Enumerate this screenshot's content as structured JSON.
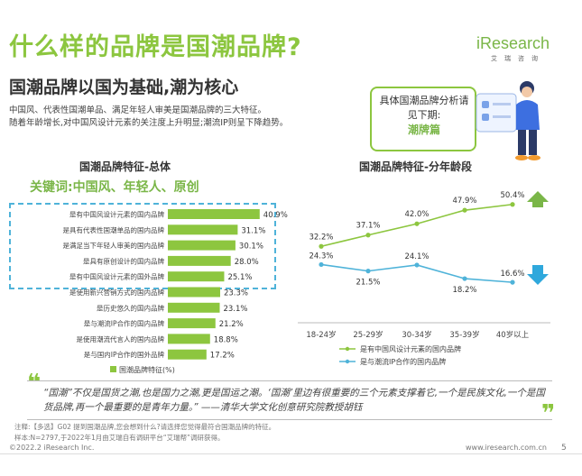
{
  "header": {
    "title": "什么样的品牌是国潮品牌?",
    "subtitle": "国潮品牌以国为基础,潮为核心",
    "desc_line1": "中国风、代表性国潮单品、满足年轻人审美是国潮品牌的三大特征。",
    "desc_line2": "随着年龄增长,对中国风设计元素的关注度上升明显;潮流IP则呈下降趋势。",
    "logo_text": "iResearch",
    "logo_sub": "艾瑞咨询"
  },
  "callout": {
    "text": "具体国潮品牌分析请见下期:",
    "emphasis": "潮牌篇"
  },
  "left_chart_title": "国潮品牌特征-总体",
  "keywords": "关键词:中国风、年轻人、原创",
  "right_chart_title": "国潮品牌特征-分年龄段",
  "quote": "“国潮”不仅是国货之潮,也是国力之潮,更是国运之潮。‘国潮’里边有很重要的三个元素支撑着它,一个是民族文化,一个是国货品牌,再一个最重要的是青年力量。” ——清华大学文化创意研究院教授胡钰",
  "notes": {
    "line1": "注释:【多选】G02 提到国潮品牌,您会想到什么?请选择您觉得最符合国潮品牌的特征。",
    "line2": "样本:N=2797,于2022年1月由艾瑞自有调研平台“艾瑞帮”调研获得。"
  },
  "footer": {
    "copyright": "©2022.2 iResearch Inc.",
    "url": "www.iresearch.com.cn",
    "page": "5"
  },
  "colors": {
    "accent_green": "#8cc63f",
    "bar_green": "#8dc63f",
    "line_blue": "#4fb3d9",
    "arrow_green": "#7ab648",
    "arrow_blue": "#2fa8dc"
  },
  "chart_data": [
    {
      "type": "bar",
      "orientation": "horizontal",
      "title": "国潮品牌特征-总体",
      "categories": [
        "是有中国风设计元素的国内品牌",
        "是具有代表性国潮单品的国内品牌",
        "是满足当下年轻人审美的国内品牌",
        "是具有原创设计的国内品牌",
        "是有中国风设计元素的国外品牌",
        "是使用新兴营销方式的国内品牌",
        "是历史悠久的国内品牌",
        "是与潮流IP合作的国内品牌",
        "是使用潮流代言人的国内品牌",
        "是与国内IP合作的国外品牌"
      ],
      "values": [
        40.9,
        31.1,
        30.1,
        28.0,
        25.1,
        23.3,
        23.1,
        21.2,
        18.8,
        17.2
      ],
      "value_labels": [
        "40.9%",
        "31.1%",
        "30.1%",
        "28.0%",
        "25.1%",
        "23.3%",
        "23.1%",
        "21.2%",
        "18.8%",
        "17.2%"
      ],
      "legend": "国潮品牌特征(%)",
      "xlim": [
        0,
        45
      ]
    },
    {
      "type": "line",
      "title": "国潮品牌特征-分年龄段",
      "categories": [
        "18-24岁",
        "25-29岁",
        "30-34岁",
        "35-39岁",
        "40岁以上"
      ],
      "series": [
        {
          "name": "是有中国风设计元素的国内品牌",
          "values": [
            32.2,
            37.1,
            42.0,
            47.9,
            50.4
          ],
          "labels": [
            "32.2%",
            "37.1%",
            "42.0%",
            "47.9%",
            "50.4%"
          ],
          "color": "#8dc63f",
          "trend": "up"
        },
        {
          "name": "是与潮流IP合作的国内品牌",
          "values": [
            24.3,
            21.5,
            24.1,
            18.2,
            16.6
          ],
          "labels": [
            "24.3%",
            "21.5%",
            "24.1%",
            "18.2%",
            "16.6%"
          ],
          "color": "#4fb3d9",
          "trend": "down"
        }
      ],
      "ylim": [
        10,
        55
      ],
      "legend_position": "bottom"
    }
  ]
}
